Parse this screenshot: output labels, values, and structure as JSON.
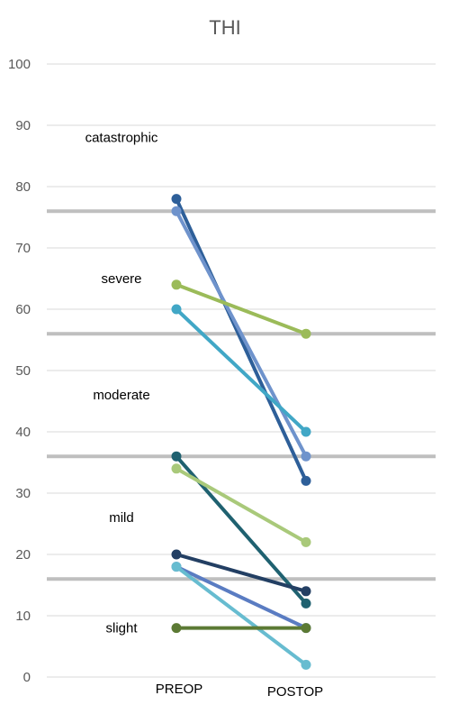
{
  "chart_data": {
    "type": "line",
    "title": "THI",
    "xlabel": "",
    "ylabel": "",
    "categories": [
      "PREOP",
      "POSTOP"
    ],
    "ylim": [
      0,
      100
    ],
    "yticks": [
      0,
      10,
      20,
      30,
      40,
      50,
      60,
      70,
      80,
      90,
      100
    ],
    "grid": true,
    "legend": "none",
    "thresholds": [
      16,
      36,
      56,
      76
    ],
    "threshold_color": "#bfbfbf",
    "band_labels": [
      {
        "text": "catastrophic",
        "value": 88
      },
      {
        "text": "severe",
        "value": 65
      },
      {
        "text": "moderate",
        "value": 46
      },
      {
        "text": "mild",
        "value": 26
      },
      {
        "text": "slight",
        "value": 8
      }
    ],
    "series": [
      {
        "values": [
          78,
          32
        ],
        "color": "#2e5f99"
      },
      {
        "values": [
          76,
          36
        ],
        "color": "#6f93cc"
      },
      {
        "values": [
          64,
          56
        ],
        "color": "#9bbb59"
      },
      {
        "values": [
          60,
          40
        ],
        "color": "#41a7c6"
      },
      {
        "values": [
          36,
          12
        ],
        "color": "#1f6170"
      },
      {
        "values": [
          34,
          22
        ],
        "color": "#a9c97a"
      },
      {
        "values": [
          20,
          14
        ],
        "color": "#233f63"
      },
      {
        "values": [
          18,
          8
        ],
        "color": "#5a7cc2"
      },
      {
        "values": [
          18,
          2
        ],
        "color": "#67bcd0"
      },
      {
        "values": [
          8,
          8
        ],
        "color": "#5c7a34"
      }
    ]
  }
}
